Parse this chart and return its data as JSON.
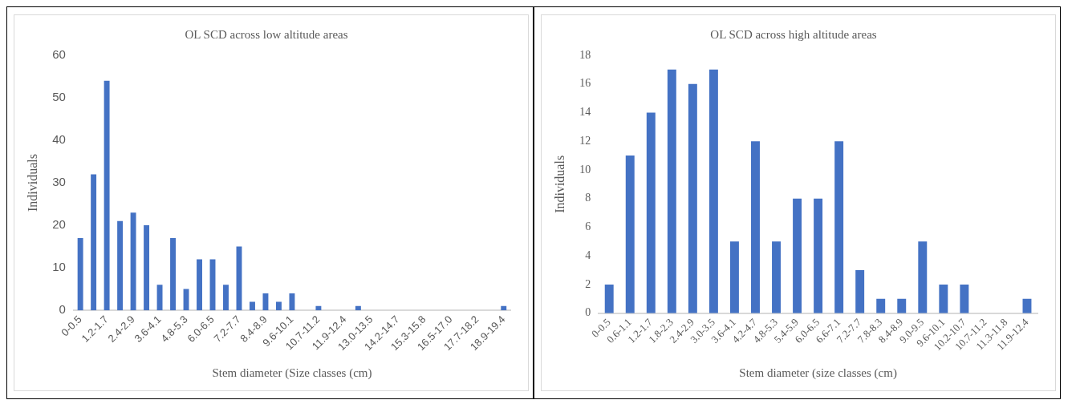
{
  "chart_data": [
    {
      "type": "bar",
      "title": "OL SCD across low altitude areas",
      "xlabel": "Stem diameter (Size classes (cm)",
      "ylabel": "Individuals",
      "categories": [
        "0-0.5",
        null,
        "1.2-1.7",
        null,
        "2.4-2.9",
        null,
        "3.6-4.1",
        null,
        "4.8-5.3",
        null,
        "6.0-6.5",
        null,
        "7.2-7.7",
        null,
        "8.4-8.9",
        null,
        "9.6-10.1",
        null,
        "10.7-11.2",
        null,
        "11.9-12.4",
        null,
        "13.0-13.5",
        null,
        "14.2-14.7",
        null,
        "15.3-15.8",
        null,
        "16.5-17.0",
        null,
        "17.7-18.2",
        null,
        "18.9-19.4"
      ],
      "values": [
        17,
        32,
        54,
        21,
        23,
        20,
        6,
        17,
        5,
        12,
        12,
        6,
        15,
        2,
        4,
        2,
        4,
        0,
        1,
        0,
        0,
        1,
        0,
        0,
        0,
        0,
        0,
        0,
        0,
        0,
        0,
        0,
        1
      ],
      "color": "#4472c4",
      "ylim": [
        0,
        60
      ],
      "yticks": [
        0,
        10,
        20,
        30,
        40,
        50,
        60
      ],
      "grid": false,
      "legend": false
    },
    {
      "type": "bar",
      "title": "OL SCD across high altitude areas",
      "xlabel": "Stem diameter (size classes (cm)",
      "ylabel": "Individuals",
      "categories": [
        "0-0.5",
        "0.6-1.1",
        "1.2-1.7",
        "1.8-2.3",
        "2.4-2.9",
        "3.0-3.5",
        "3.6-4.1",
        "4.2-4.7",
        "4.8-5.3",
        "5.4-5.9",
        "6.0-6.5",
        "6.6-7.1",
        "7.2-7.7",
        "7.8-8.3",
        "8.4-8.9",
        "9.0-9.5",
        "9.6-10.1",
        "10.2-10.7",
        "10.7-11.2",
        "11.3-11.8",
        "11.9-12.4"
      ],
      "values": [
        2,
        11,
        14,
        17,
        16,
        17,
        5,
        12,
        5,
        8,
        8,
        12,
        3,
        1,
        1,
        5,
        2,
        2,
        0,
        0,
        1
      ],
      "color": "#4472c4",
      "ylim": [
        0,
        18
      ],
      "yticks": [
        0,
        2,
        4,
        6,
        8,
        10,
        12,
        14,
        16,
        18
      ],
      "grid": false,
      "legend": false
    }
  ]
}
